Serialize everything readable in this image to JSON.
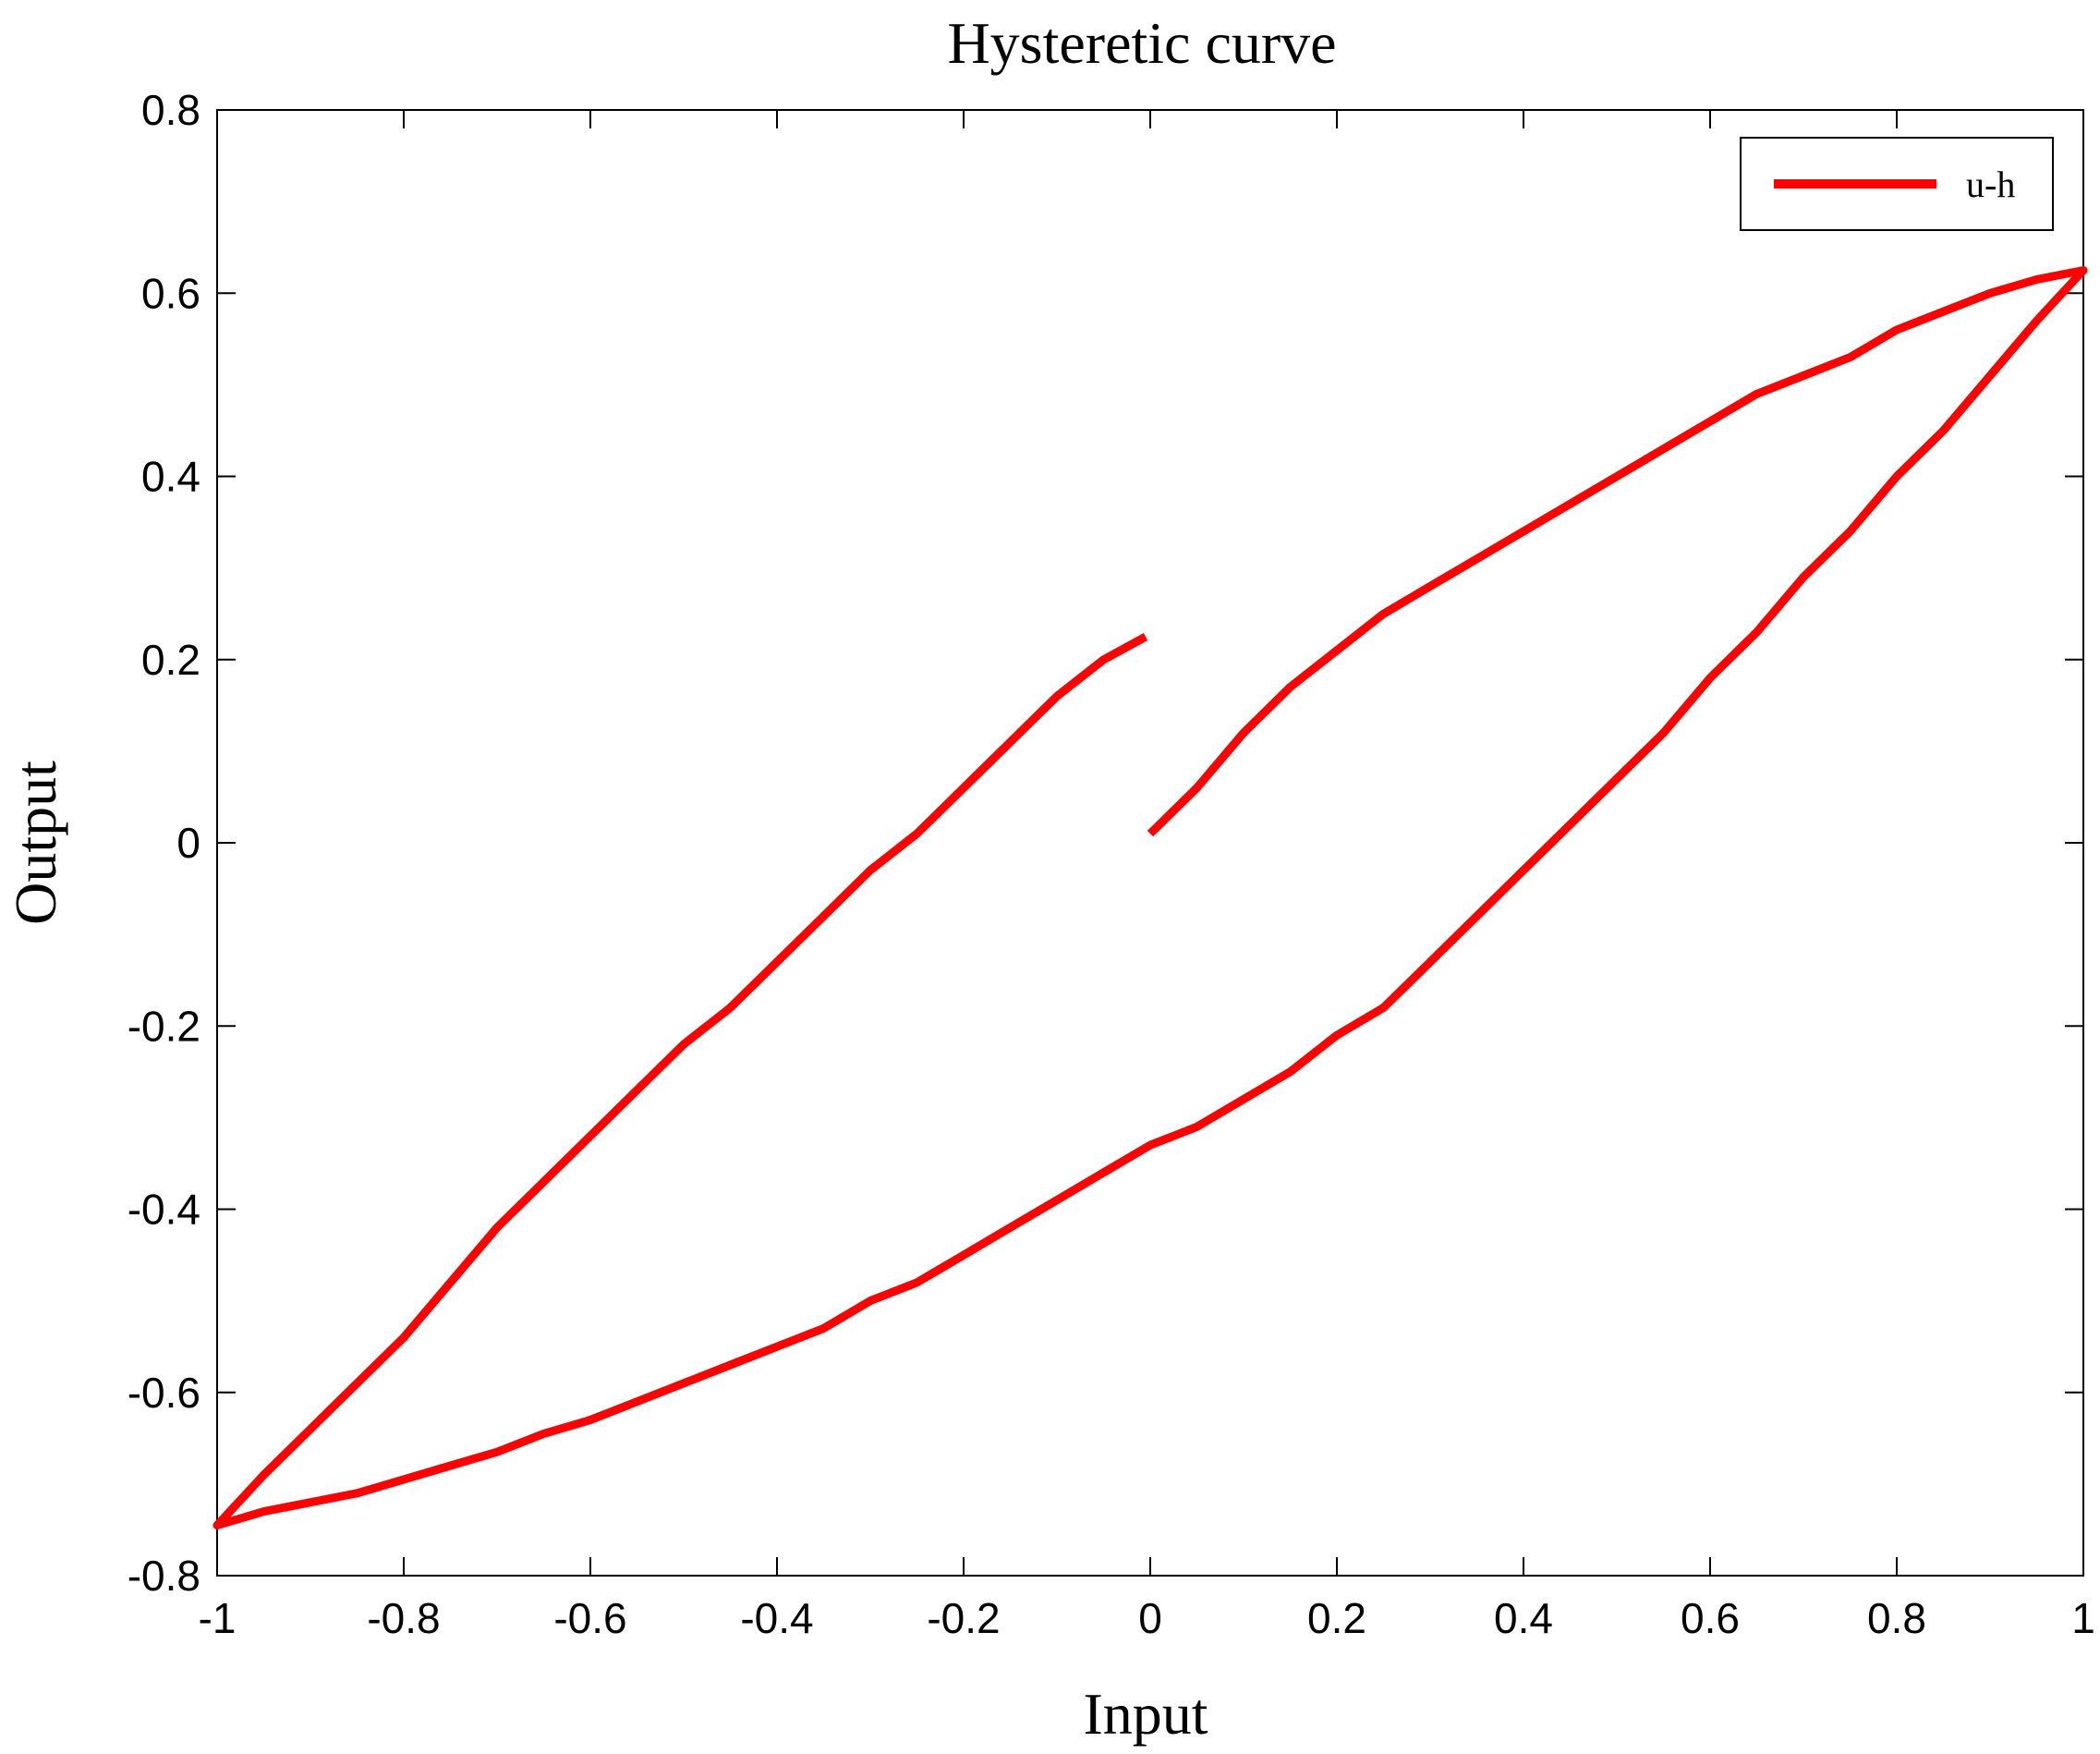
{
  "chart_data": {
    "type": "line",
    "title": "Hysteretic curve",
    "xlabel": "Input",
    "ylabel": "Output",
    "xlim": [
      -1,
      1
    ],
    "ylim": [
      -0.8,
      0.8
    ],
    "xticks": [
      -1,
      -0.8,
      -0.6,
      -0.4,
      -0.2,
      0,
      0.2,
      0.4,
      0.6,
      0.8,
      1
    ],
    "xtick_labels": [
      "-1",
      "-0.8",
      "-0.6",
      "-0.4",
      "-0.2",
      "0",
      "0.2",
      "0.4",
      "0.6",
      "0.8",
      "1"
    ],
    "yticks": [
      -0.8,
      -0.6,
      -0.4,
      -0.2,
      0,
      0.2,
      0.4,
      0.6,
      0.8
    ],
    "ytick_labels": [
      "-0.8",
      "-0.6",
      "-0.4",
      "-0.2",
      "0",
      "0.2",
      "0.4",
      "0.6",
      "0.8"
    ],
    "grid": false,
    "legend_position": "top-right",
    "series": [
      {
        "name": "u-h",
        "color": "#ff0000",
        "x": [
          0.0,
          0.05,
          0.1,
          0.15,
          0.2,
          0.25,
          0.3,
          0.35,
          0.4,
          0.45,
          0.5,
          0.55,
          0.6,
          0.65,
          0.7,
          0.75,
          0.8,
          0.85,
          0.9,
          0.95,
          1.0,
          0.95,
          0.9,
          0.85,
          0.8,
          0.75,
          0.7,
          0.65,
          0.6,
          0.55,
          0.5,
          0.45,
          0.4,
          0.35,
          0.3,
          0.25,
          0.2,
          0.15,
          0.1,
          0.05,
          0.0,
          -0.05,
          -0.1,
          -0.15,
          -0.2,
          -0.25,
          -0.3,
          -0.35,
          -0.4,
          -0.45,
          -0.5,
          -0.55,
          -0.6,
          -0.65,
          -0.7,
          -0.75,
          -0.8,
          -0.85,
          -0.9,
          -0.95,
          -1.0,
          -0.95,
          -0.9,
          -0.85,
          -0.8,
          -0.75,
          -0.7,
          -0.65,
          -0.6,
          -0.55,
          -0.5,
          -0.45,
          -0.4,
          -0.35,
          -0.3,
          -0.25,
          -0.2,
          -0.15,
          -0.1,
          -0.05,
          -0.005
        ],
        "y": [
          0.01,
          0.06,
          0.12,
          0.17,
          0.21,
          0.25,
          0.28,
          0.31,
          0.34,
          0.37,
          0.4,
          0.43,
          0.46,
          0.49,
          0.51,
          0.53,
          0.56,
          0.58,
          0.6,
          0.615,
          0.625,
          0.57,
          0.51,
          0.45,
          0.4,
          0.34,
          0.29,
          0.23,
          0.18,
          0.12,
          0.07,
          0.02,
          -0.03,
          -0.08,
          -0.13,
          -0.18,
          -0.21,
          -0.25,
          -0.28,
          -0.31,
          -0.33,
          -0.36,
          -0.39,
          -0.42,
          -0.45,
          -0.48,
          -0.5,
          -0.53,
          -0.55,
          -0.57,
          -0.59,
          -0.61,
          -0.63,
          -0.645,
          -0.665,
          -0.68,
          -0.695,
          -0.71,
          -0.72,
          -0.73,
          -0.745,
          -0.69,
          -0.64,
          -0.59,
          -0.54,
          -0.48,
          -0.42,
          -0.37,
          -0.32,
          -0.27,
          -0.22,
          -0.18,
          -0.13,
          -0.08,
          -0.03,
          0.01,
          0.06,
          0.11,
          0.16,
          0.2,
          0.225
        ]
      }
    ]
  }
}
